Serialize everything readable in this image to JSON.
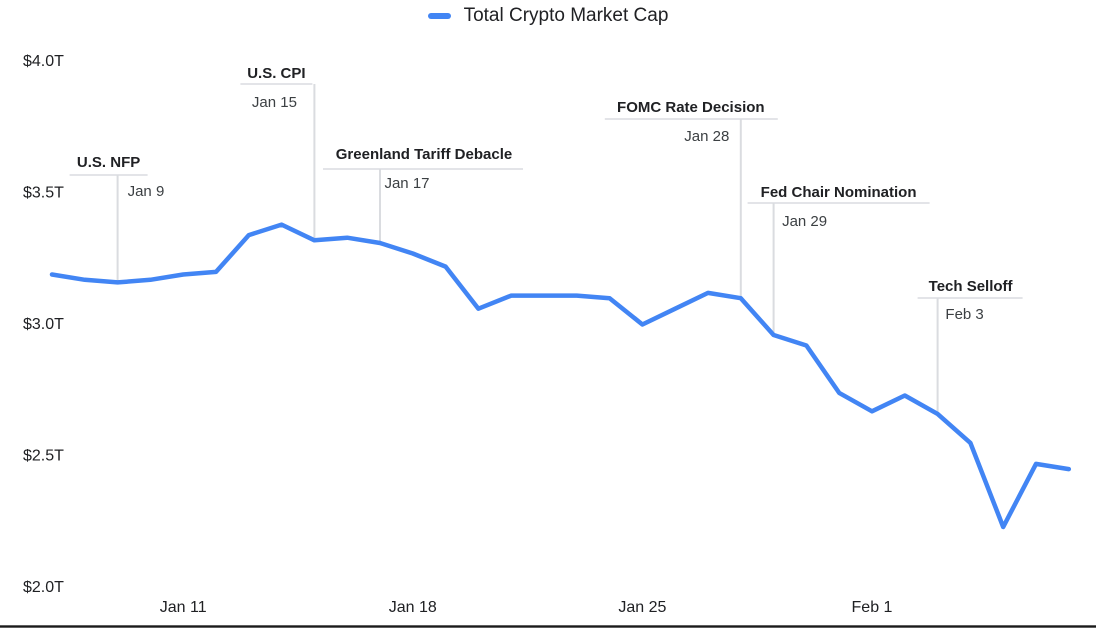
{
  "colors": {
    "line": "#4285f4",
    "annotation_stem": "#dadce0",
    "annotation_divider": "#dadce0",
    "axis_line": "#1a1a1a",
    "text_primary": "#202124",
    "text_secondary": "#3c4043",
    "background": "#ffffff"
  },
  "legend": {
    "label": "Total Crypto Market Cap"
  },
  "chart_data": {
    "type": "line",
    "title": "Total Crypto Market Cap",
    "unit": "trillions USD",
    "grid": false,
    "legend_position": "top-center",
    "ylim": [
      2.0,
      4.0
    ],
    "x": [
      "Jan 7",
      "Jan 8",
      "Jan 9",
      "Jan 10",
      "Jan 11",
      "Jan 12",
      "Jan 13",
      "Jan 14",
      "Jan 15",
      "Jan 16",
      "Jan 17",
      "Jan 18",
      "Jan 19",
      "Jan 20",
      "Jan 21",
      "Jan 22",
      "Jan 23",
      "Jan 24",
      "Jan 25",
      "Jan 26",
      "Jan 27",
      "Jan 28",
      "Jan 29",
      "Jan 30",
      "Jan 31",
      "Feb 1",
      "Feb 2",
      "Feb 3",
      "Feb 4",
      "Feb 5",
      "Feb 6",
      "Feb 7"
    ],
    "values": [
      3.19,
      3.17,
      3.16,
      3.17,
      3.19,
      3.2,
      3.34,
      3.38,
      3.32,
      3.33,
      3.31,
      3.27,
      3.22,
      3.06,
      3.11,
      3.11,
      3.11,
      3.1,
      3.0,
      3.06,
      3.12,
      3.1,
      2.96,
      2.92,
      2.74,
      2.67,
      2.73,
      2.66,
      2.55,
      2.23,
      2.47,
      2.45
    ],
    "y_ticks": [
      {
        "label": "$4.0T",
        "value": 4.0
      },
      {
        "label": "$3.5T",
        "value": 3.5
      },
      {
        "label": "$3.0T",
        "value": 3.0
      },
      {
        "label": "$2.5T",
        "value": 2.5
      },
      {
        "label": "$2.0T",
        "value": 2.0
      }
    ],
    "x_ticks": [
      {
        "label": "Jan 11",
        "x": "Jan 11"
      },
      {
        "label": "Jan 18",
        "x": "Jan 18"
      },
      {
        "label": "Jan 25",
        "x": "Jan 25"
      },
      {
        "label": "Feb 1",
        "x": "Feb 1"
      }
    ],
    "annotations": [
      {
        "title": "U.S. NFP",
        "date": "Jan 9",
        "x": "Jan 9",
        "value": 3.16
      },
      {
        "title": "U.S. CPI",
        "date": "Jan 15",
        "x": "Jan 15",
        "value": 3.32
      },
      {
        "title": "Greenland Tariff Debacle",
        "date": "Jan 17",
        "x": "Jan 17",
        "value": 3.31
      },
      {
        "title": "FOMC Rate Decision",
        "date": "Jan 28",
        "x": "Jan 28",
        "value": 3.1
      },
      {
        "title": "Fed Chair Nomination",
        "date": "Jan 29",
        "x": "Jan 29",
        "value": 2.96
      },
      {
        "title": "Tech Selloff",
        "date": "Feb 3",
        "x": "Feb 3",
        "value": 2.66
      }
    ]
  }
}
